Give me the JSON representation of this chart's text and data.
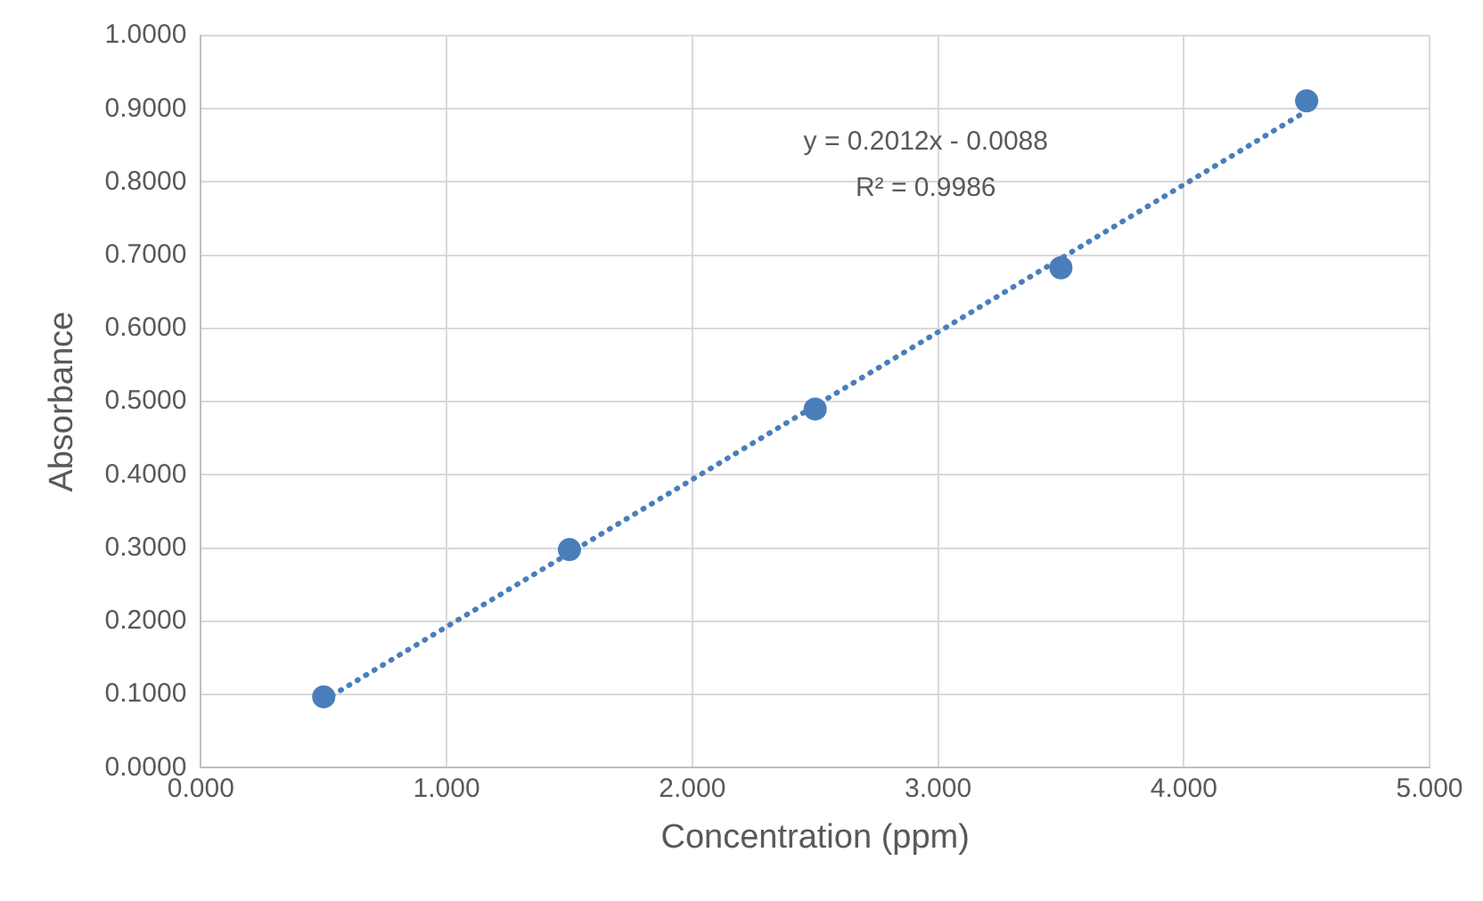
{
  "chart_data": {
    "type": "scatter",
    "xlabel": "Concentration (ppm)",
    "ylabel": "Absorbance",
    "x": [
      0.5,
      1.5,
      2.5,
      3.5,
      4.5
    ],
    "series": [
      {
        "color": "#4a7ebb",
        "marker": "circle",
        "values": [
          0.097,
          0.298,
          0.49,
          0.683,
          0.911
        ]
      },
      {
        "type": "line",
        "color": "#4a7ebb",
        "line_style": "dotted",
        "marker": "none",
        "x": [
          0.5,
          4.5
        ],
        "values": [
          0.092,
          0.897
        ]
      }
    ],
    "xlim": [
      0,
      5
    ],
    "ylim": [
      0,
      1
    ],
    "xticks": [
      {
        "value": 0,
        "label": "0.000"
      },
      {
        "value": 1,
        "label": "1.000"
      },
      {
        "value": 2,
        "label": "2.000"
      },
      {
        "value": 3,
        "label": "3.000"
      },
      {
        "value": 4,
        "label": "4.000"
      },
      {
        "value": 5,
        "label": "5.000"
      }
    ],
    "yticks": [
      {
        "value": 0,
        "label": "0.0000"
      },
      {
        "value": 0.1,
        "label": "0.1000"
      },
      {
        "value": 0.2,
        "label": "0.2000"
      },
      {
        "value": 0.3,
        "label": "0.3000"
      },
      {
        "value": 0.4,
        "label": "0.4000"
      },
      {
        "value": 0.5,
        "label": "0.5000"
      },
      {
        "value": 0.6,
        "label": "0.6000"
      },
      {
        "value": 0.7,
        "label": "0.7000"
      },
      {
        "value": 0.8,
        "label": "0.8000"
      },
      {
        "value": 0.9,
        "label": "0.9000"
      },
      {
        "value": 1,
        "label": "1.0000"
      }
    ],
    "annotations": [
      "y = 0.2012x - 0.0088",
      "R² = 0.9986"
    ],
    "grid": true,
    "legend": false
  }
}
